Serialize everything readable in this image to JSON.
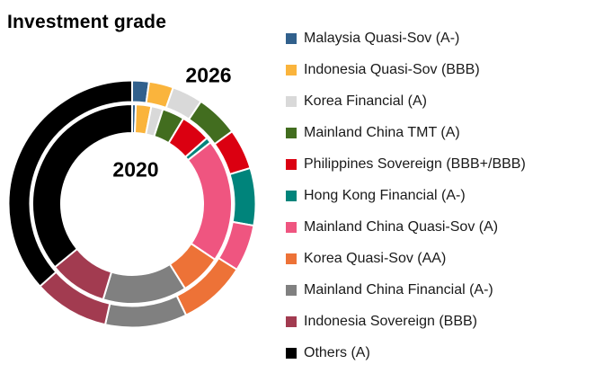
{
  "title": "Investment grade",
  "chart_data": {
    "type": "pie",
    "subtype": "double_ring_donut",
    "direction": "clockwise",
    "start_angle_deg": 0,
    "legend_position": "right",
    "categories": [
      "Malaysia Quasi-Sov (A-)",
      "Indonesia Quasi-Sov (BBB)",
      "Korea Financial (A)",
      "Mainland China TMT (A)",
      "Philippines Sovereign (BBB+/BBB)",
      "Hong Kong Financial (A-)",
      "Mainland China Quasi-Sov (A)",
      "Korea Quasi-Sov (AA)",
      "Mainland China Financial (A-)",
      "Indonesia Sovereign (BBB)",
      "Others (A)"
    ],
    "colors": [
      "#31608C",
      "#FAB43C",
      "#D9D9D9",
      "#426D1F",
      "#DB0011",
      "#00847B",
      "#EF5580",
      "#ED7237",
      "#808080",
      "#A23B50",
      "#000000"
    ],
    "rings": [
      {
        "label": "2020",
        "position": "inner",
        "values_pct": [
          0.6,
          2.5,
          1.9,
          3.6,
          4.9,
          0.9,
          20.0,
          6.7,
          13.6,
          9.4,
          35.9
        ]
      },
      {
        "label": "2026",
        "position": "outer",
        "values_pct": [
          2.2,
          3.2,
          4.0,
          5.6,
          5.3,
          7.5,
          6.1,
          8.9,
          10.7,
          9.9,
          36.6
        ]
      }
    ]
  }
}
